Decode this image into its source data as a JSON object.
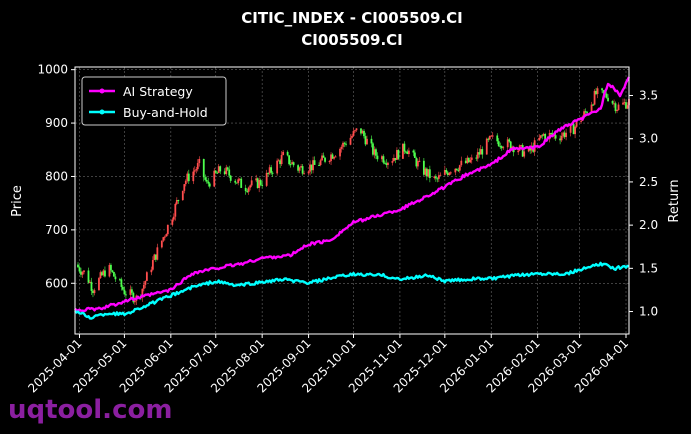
{
  "chart_data": {
    "type": "line",
    "title": "CITIC_INDEX - CI005509.CI",
    "subtitle": "CI005509.CI",
    "ylabel": "Price",
    "y2label": "Return",
    "ylim": [
      505,
      1005
    ],
    "y2lim": [
      0.74,
      3.83
    ],
    "xlim": [
      "2025-03-29",
      "2026-04-03"
    ],
    "grid": true,
    "legend_position": "top-left",
    "x_ticks": [
      "2025-04-01",
      "2025-05-01",
      "2025-06-01",
      "2025-07-01",
      "2025-08-01",
      "2025-09-01",
      "2025-10-01",
      "2025-11-01",
      "2025-12-01",
      "2026-01-01",
      "2026-02-01",
      "2026-03-01",
      "2026-04-01"
    ],
    "y_ticks": [
      600,
      700,
      800,
      900,
      1000
    ],
    "y2_ticks": [
      1.0,
      1.5,
      2.0,
      2.5,
      3.0,
      3.5
    ],
    "series": [
      {
        "name": "AI Strategy",
        "axis": "right",
        "color": "#ff00ff",
        "points": [
          [
            "2025-03-29",
            1.02
          ],
          [
            "2025-04-15",
            1.03
          ],
          [
            "2025-05-01",
            1.12
          ],
          [
            "2025-05-20",
            1.2
          ],
          [
            "2025-06-01",
            1.25
          ],
          [
            "2025-06-15",
            1.44
          ],
          [
            "2025-07-01",
            1.5
          ],
          [
            "2025-07-20",
            1.56
          ],
          [
            "2025-08-01",
            1.62
          ],
          [
            "2025-08-20",
            1.65
          ],
          [
            "2025-09-01",
            1.78
          ],
          [
            "2025-09-15",
            1.82
          ],
          [
            "2025-10-01",
            2.03
          ],
          [
            "2025-10-15",
            2.1
          ],
          [
            "2025-11-01",
            2.18
          ],
          [
            "2025-11-15",
            2.3
          ],
          [
            "2025-12-01",
            2.44
          ],
          [
            "2025-12-15",
            2.58
          ],
          [
            "2026-01-01",
            2.7
          ],
          [
            "2026-01-15",
            2.88
          ],
          [
            "2026-02-01",
            2.9
          ],
          [
            "2026-02-15",
            3.1
          ],
          [
            "2026-03-01",
            3.22
          ],
          [
            "2026-03-15",
            3.35
          ],
          [
            "2026-03-20",
            3.65
          ],
          [
            "2026-03-28",
            3.5
          ],
          [
            "2026-04-03",
            3.7
          ]
        ]
      },
      {
        "name": "Buy-and-Hold",
        "axis": "right",
        "color": "#00ffff",
        "points": [
          [
            "2025-03-29",
            1.01
          ],
          [
            "2025-04-08",
            0.93
          ],
          [
            "2025-04-20",
            0.98
          ],
          [
            "2025-05-01",
            0.97
          ],
          [
            "2025-05-20",
            1.1
          ],
          [
            "2025-06-15",
            1.28
          ],
          [
            "2025-07-01",
            1.35
          ],
          [
            "2025-07-15",
            1.3
          ],
          [
            "2025-08-01",
            1.34
          ],
          [
            "2025-08-15",
            1.37
          ],
          [
            "2025-09-01",
            1.33
          ],
          [
            "2025-09-20",
            1.4
          ],
          [
            "2025-10-01",
            1.43
          ],
          [
            "2025-10-20",
            1.42
          ],
          [
            "2025-11-01",
            1.37
          ],
          [
            "2025-11-20",
            1.42
          ],
          [
            "2025-12-01",
            1.35
          ],
          [
            "2025-12-20",
            1.38
          ],
          [
            "2026-01-01",
            1.38
          ],
          [
            "2026-01-20",
            1.42
          ],
          [
            "2026-02-01",
            1.44
          ],
          [
            "2026-02-20",
            1.44
          ],
          [
            "2026-03-01",
            1.48
          ],
          [
            "2026-03-15",
            1.55
          ],
          [
            "2026-03-25",
            1.5
          ],
          [
            "2026-04-03",
            1.53
          ]
        ]
      }
    ],
    "price_candles": {
      "axis": "left",
      "up_color": "#ff4d4d",
      "down_color": "#4dff4d",
      "closes": [
        [
          "2025-03-29",
          635
        ],
        [
          "2025-04-05",
          618
        ],
        [
          "2025-04-10",
          590
        ],
        [
          "2025-04-20",
          630
        ],
        [
          "2025-05-01",
          585
        ],
        [
          "2025-05-10",
          570
        ],
        [
          "2025-05-20",
          640
        ],
        [
          "2025-06-01",
          720
        ],
        [
          "2025-06-10",
          790
        ],
        [
          "2025-06-20",
          822
        ],
        [
          "2025-06-25",
          785
        ],
        [
          "2025-07-05",
          815
        ],
        [
          "2025-07-20",
          780
        ],
        [
          "2025-08-01",
          790
        ],
        [
          "2025-08-15",
          838
        ],
        [
          "2025-08-25",
          815
        ],
        [
          "2025-09-05",
          820
        ],
        [
          "2025-09-20",
          848
        ],
        [
          "2025-10-05",
          890
        ],
        [
          "2025-10-15",
          842
        ],
        [
          "2025-10-25",
          830
        ],
        [
          "2025-11-05",
          855
        ],
        [
          "2025-11-15",
          815
        ],
        [
          "2025-11-25",
          792
        ],
        [
          "2025-12-05",
          815
        ],
        [
          "2025-12-20",
          830
        ],
        [
          "2026-01-01",
          870
        ],
        [
          "2026-01-15",
          858
        ],
        [
          "2026-01-25",
          842
        ],
        [
          "2026-02-05",
          878
        ],
        [
          "2026-02-15",
          875
        ],
        [
          "2026-02-25",
          890
        ],
        [
          "2026-03-05",
          920
        ],
        [
          "2026-03-12",
          955
        ],
        [
          "2026-03-20",
          950
        ],
        [
          "2026-03-26",
          930
        ],
        [
          "2026-04-03",
          940
        ]
      ]
    }
  },
  "legend": {
    "items": [
      {
        "label": "AI Strategy",
        "color": "#ff00ff"
      },
      {
        "label": "Buy-and-Hold",
        "color": "#00ffff"
      }
    ]
  },
  "watermark": "uqtool.com"
}
